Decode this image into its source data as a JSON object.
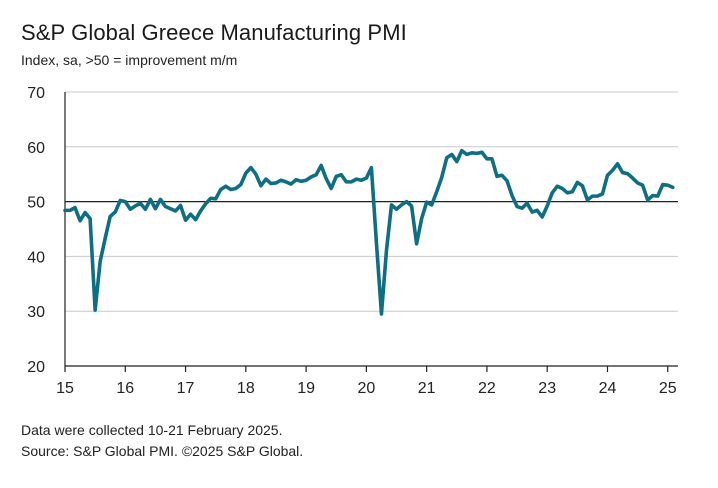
{
  "title": "S&P Global Greece Manufacturing PMI",
  "subtitle": "Index, sa, >50 = improvement m/m",
  "footer": {
    "note": "Data were collected 10-21 February 2025.",
    "source": "Source: S&P Global PMI. ©2025 S&P Global."
  },
  "colors": {
    "series": "#0e6f84",
    "grid": "#c8c8c8",
    "axis": "#222222"
  },
  "chart_data": {
    "type": "line",
    "title": "S&P Global Greece Manufacturing PMI",
    "ylabel": "",
    "xlabel": "",
    "ylim": [
      20,
      70
    ],
    "xlim": [
      2015,
      2025.17
    ],
    "grid": true,
    "reference_line": 50,
    "y_ticks": [
      "20",
      "30",
      "40",
      "50",
      "60",
      "70"
    ],
    "x_ticks": [
      "15",
      "16",
      "17",
      "18",
      "19",
      "20",
      "21",
      "22",
      "23",
      "24",
      "25"
    ],
    "series": [
      {
        "name": "",
        "start_year": 2015,
        "start_month": 1,
        "values": [
          48.4,
          48.4,
          48.9,
          46.5,
          48.0,
          46.9,
          30.2,
          39.1,
          43.3,
          47.3,
          48.1,
          50.2,
          50.0,
          48.6,
          49.2,
          49.7,
          48.6,
          50.4,
          48.7,
          50.4,
          49.1,
          48.7,
          48.3,
          49.3,
          46.6,
          47.7,
          46.7,
          48.3,
          49.6,
          50.6,
          50.5,
          52.2,
          52.8,
          52.2,
          52.4,
          53.1,
          55.2,
          56.2,
          55.0,
          52.9,
          54.1,
          53.3,
          53.4,
          53.9,
          53.6,
          53.2,
          54.0,
          53.7,
          53.9,
          54.5,
          54.9,
          56.6,
          54.2,
          52.4,
          54.6,
          54.9,
          53.6,
          53.6,
          54.1,
          53.9,
          54.3,
          56.2,
          42.5,
          29.5,
          41.1,
          49.4,
          48.6,
          49.4,
          50.0,
          49.2,
          42.3,
          46.9,
          49.9,
          49.4,
          51.8,
          54.4,
          58.0,
          58.6,
          57.3,
          59.3,
          58.6,
          58.9,
          58.8,
          59.0,
          57.8,
          57.8,
          54.6,
          54.8,
          53.8,
          51.1,
          49.1,
          48.8,
          49.7,
          48.1,
          48.4,
          47.2,
          49.2,
          51.6,
          52.8,
          52.4,
          51.6,
          51.8,
          53.5,
          52.9,
          50.3,
          51.0,
          51.0,
          51.4,
          54.8,
          55.7,
          56.9,
          55.3,
          55.1,
          54.3,
          53.4,
          53.0,
          50.3,
          51.1,
          51.0,
          53.1,
          53.0,
          52.6
        ]
      }
    ]
  }
}
